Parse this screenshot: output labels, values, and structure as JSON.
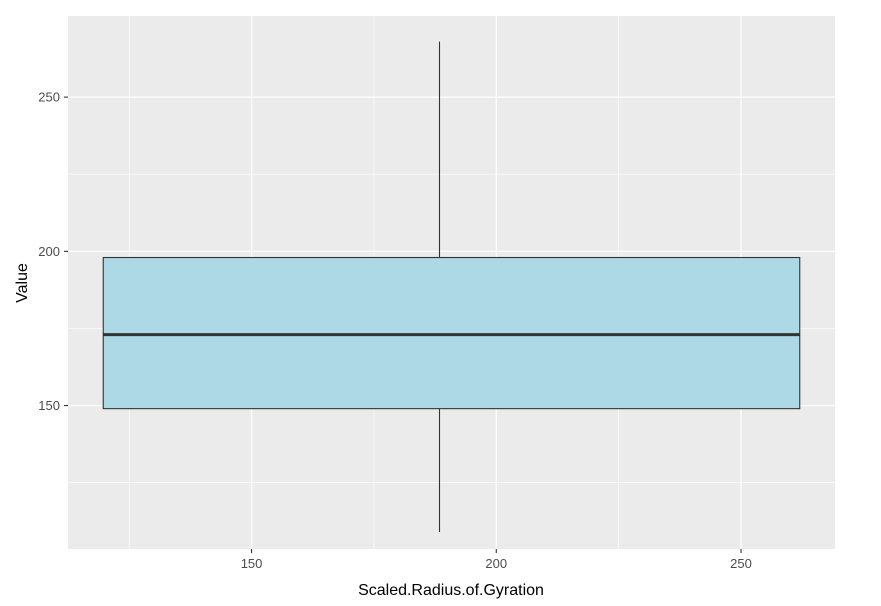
{
  "chart_data": {
    "type": "box",
    "xlabel": "Scaled.Radius.of.Gyration",
    "ylabel": "Value",
    "xlim": [
      112.5,
      269.2
    ],
    "ylim": [
      103.5,
      276.3
    ],
    "x_ticks": [
      150,
      200,
      250
    ],
    "y_ticks": [
      150,
      200,
      250
    ],
    "x_minor_ticks": [
      125,
      175,
      225
    ],
    "y_minor_ticks": [
      125,
      175,
      225
    ],
    "grid": true,
    "panel_background": "#ebebeb",
    "grid_color": "#ffffff",
    "box": {
      "x_min": 119.7,
      "x_max": 262.0,
      "whisker_x": 188.4,
      "q1": 149,
      "median": 173,
      "q3": 198,
      "whisker_low": 109,
      "whisker_high": 268,
      "fill": "#add8e6",
      "stroke": "#333333"
    }
  }
}
